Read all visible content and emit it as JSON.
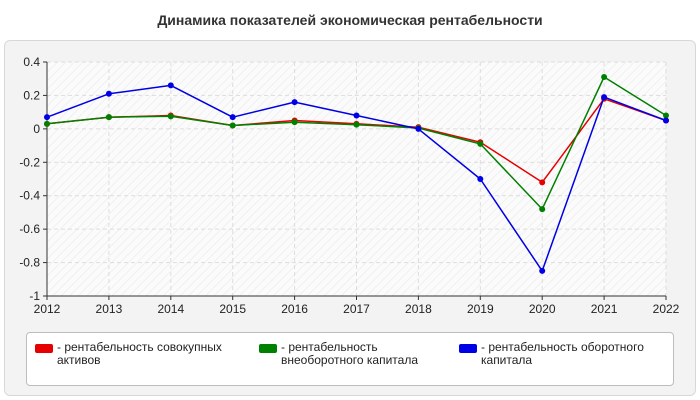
{
  "chart_data": {
    "type": "line",
    "title": "Динамика показателей экономическая рентабельности",
    "xlabel": "",
    "ylabel": "",
    "x": [
      "2012",
      "2013",
      "2014",
      "2015",
      "2016",
      "2017",
      "2018",
      "2019",
      "2020",
      "2021",
      "2022"
    ],
    "ylim": [
      -1,
      0.4
    ],
    "yticks": [
      "0.4",
      "0.2",
      "0",
      "-0.2",
      "-0.4",
      "-0.6",
      "-0.8",
      "-1"
    ],
    "grid": true,
    "legend_position": "bottom",
    "series": [
      {
        "name": "- рентабельность совокупных активов",
        "color": "#e60000",
        "values": [
          0.03,
          0.07,
          0.08,
          0.02,
          0.05,
          0.03,
          0.01,
          -0.08,
          -0.32,
          0.18,
          0.05
        ]
      },
      {
        "name": "- рентабельность внеоборотного капитала",
        "color": "#008000",
        "values": [
          0.03,
          0.07,
          0.075,
          0.02,
          0.04,
          0.025,
          0.005,
          -0.09,
          -0.48,
          0.31,
          0.08
        ]
      },
      {
        "name": "- рентабельность оборотного капитала",
        "color": "#0000e6",
        "values": [
          0.07,
          0.21,
          0.26,
          0.07,
          0.16,
          0.08,
          0.0,
          -0.3,
          -0.85,
          0.19,
          0.05
        ]
      }
    ]
  }
}
